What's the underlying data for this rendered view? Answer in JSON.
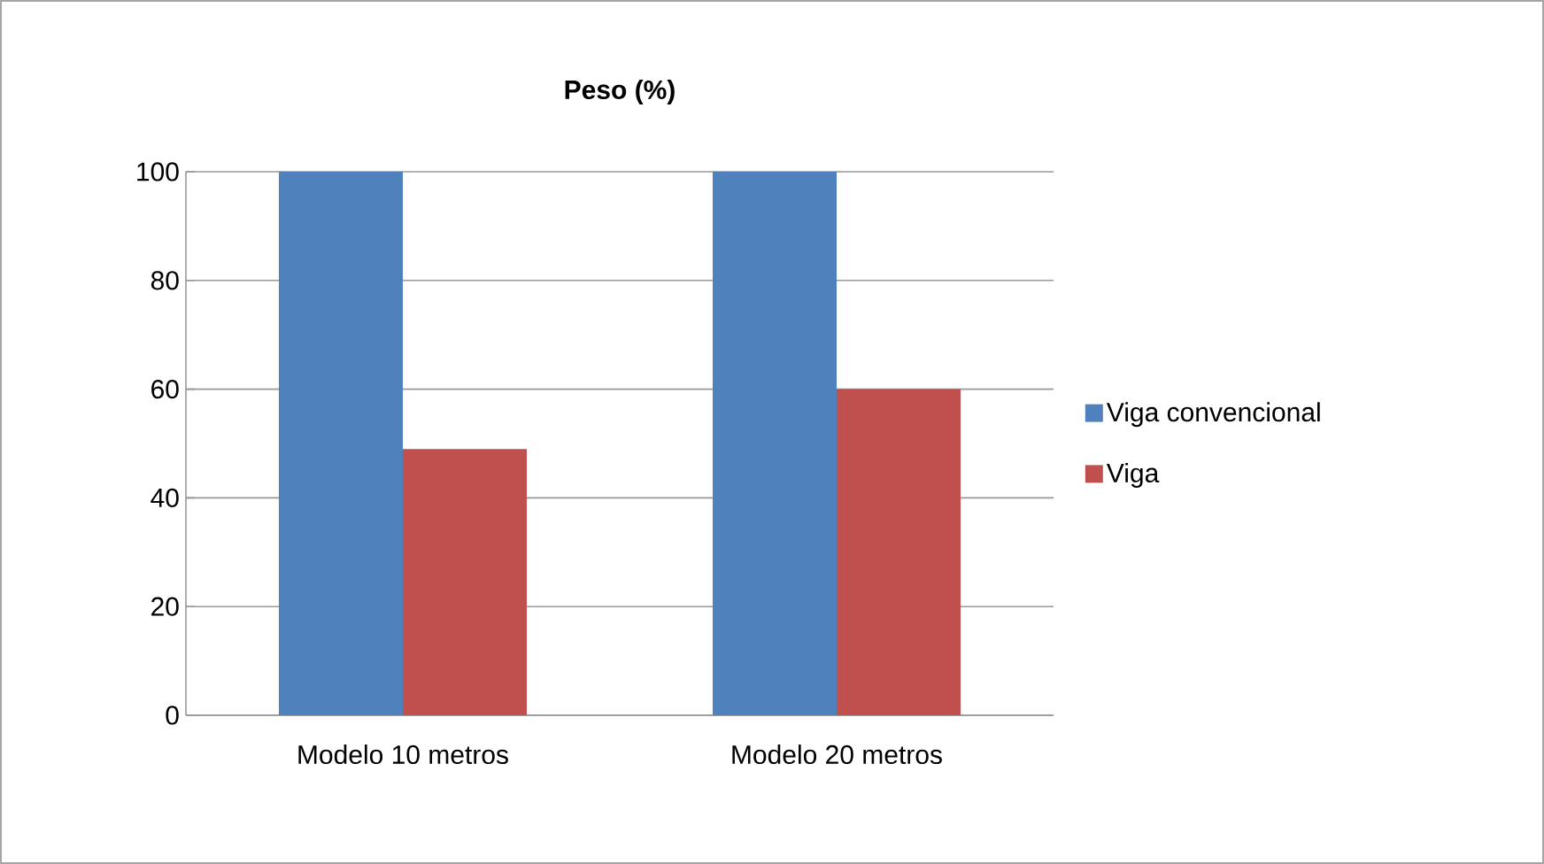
{
  "chart_data": {
    "type": "bar",
    "title": "Peso (%)",
    "categories": [
      "Modelo 10 metros",
      "Modelo 20 metros"
    ],
    "series": [
      {
        "name": "Viga convencional",
        "color": "#4f81bd",
        "values": [
          100,
          100
        ]
      },
      {
        "name": "Viga",
        "color": "#c0504d",
        "values": [
          49,
          60
        ]
      }
    ],
    "ylim": [
      0,
      100
    ],
    "yticks": [
      0,
      20,
      40,
      60,
      80,
      100
    ],
    "grid": "y",
    "legend": "right"
  }
}
